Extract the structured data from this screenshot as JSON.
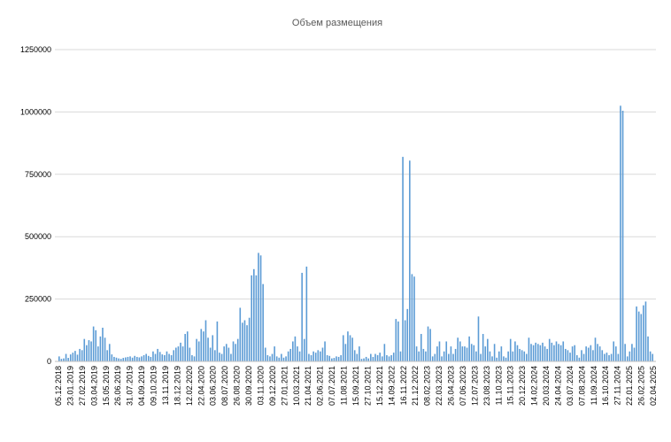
{
  "chart_data": {
    "type": "bar",
    "title": "Объем размещения",
    "xlabel": "",
    "ylabel": "",
    "ylim": [
      0,
      1250000
    ],
    "yticks": [
      "0",
      "250000",
      "500000",
      "750000",
      "1000000",
      "1250000"
    ],
    "grid": "horizontal",
    "legend": "none",
    "bar_color": "#5b9bd5",
    "xtick_labels": [
      "05.12.2018",
      "23.01.2019",
      "27.02.2019",
      "03.04.2019",
      "15.05.2019",
      "26.06.2019",
      "31.07.2019",
      "04.09.2019",
      "09.10.2019",
      "13.11.2019",
      "18.12.2019",
      "12.02.2020",
      "22.04.2020",
      "03.06.2020",
      "08.07.2020",
      "26.08.2020",
      "30.09.2020",
      "03.11.2020",
      "09.12.2020",
      "27.01.2021",
      "10.03.2021",
      "21.04.2021",
      "02.06.2021",
      "07.07.2021",
      "11.08.2021",
      "15.09.2021",
      "27.10.2021",
      "15.12.2021",
      "14.09.2022",
      "16.11.2022",
      "21.12.2022",
      "08.02.2023",
      "22.03.2023",
      "26.04.2023",
      "07.06.2023",
      "12.07.2023",
      "23.08.2023",
      "11.10.2023",
      "15.11.2023",
      "20.12.2023",
      "14.02.2024",
      "20.03.2024",
      "24.04.2024",
      "03.07.2024",
      "07.08.2024",
      "11.09.2024",
      "16.10.2024",
      "27.11.2024",
      "22.01.2025",
      "26.02.2025",
      "02.04.2025"
    ],
    "values": [
      20000,
      10000,
      12000,
      30000,
      14000,
      28000,
      35000,
      42000,
      27000,
      50000,
      45000,
      90000,
      65000,
      85000,
      80000,
      140000,
      125000,
      60000,
      100000,
      135000,
      95000,
      45000,
      70000,
      28000,
      18000,
      15000,
      12000,
      10000,
      14000,
      16000,
      18000,
      20000,
      15000,
      22000,
      18000,
      16000,
      20000,
      25000,
      30000,
      22000,
      18000,
      40000,
      30000,
      50000,
      38000,
      28000,
      25000,
      40000,
      30000,
      25000,
      45000,
      55000,
      60000,
      75000,
      60000,
      110000,
      120000,
      55000,
      25000,
      20000,
      90000,
      80000,
      130000,
      120000,
      165000,
      95000,
      55000,
      105000,
      45000,
      160000,
      35000,
      30000,
      60000,
      70000,
      55000,
      30000,
      80000,
      70000,
      90000,
      215000,
      155000,
      165000,
      145000,
      175000,
      345000,
      370000,
      345000,
      435000,
      425000,
      310000,
      55000,
      25000,
      20000,
      30000,
      60000,
      20000,
      15000,
      30000,
      15000,
      20000,
      40000,
      50000,
      80000,
      100000,
      60000,
      40000,
      355000,
      90000,
      380000,
      30000,
      25000,
      40000,
      35000,
      45000,
      40000,
      55000,
      80000,
      25000,
      22000,
      12000,
      14000,
      20000,
      18000,
      25000,
      105000,
      70000,
      120000,
      105000,
      95000,
      45000,
      30000,
      60000,
      10000,
      12000,
      18000,
      12000,
      30000,
      18000,
      30000,
      25000,
      35000,
      20000,
      70000,
      25000,
      20000,
      25000,
      35000,
      170000,
      160000,
      40000,
      820000,
      165000,
      210000,
      805000,
      350000,
      340000,
      60000,
      40000,
      110000,
      50000,
      40000,
      140000,
      130000,
      20000,
      30000,
      60000,
      80000,
      20000,
      40000,
      80000,
      30000,
      60000,
      30000,
      50000,
      95000,
      80000,
      60000,
      60000,
      55000,
      100000,
      70000,
      65000,
      40000,
      180000,
      30000,
      110000,
      60000,
      90000,
      40000,
      20000,
      70000,
      15000,
      40000,
      60000,
      20000,
      15000,
      40000,
      90000,
      40000,
      80000,
      65000,
      50000,
      45000,
      40000,
      30000,
      95000,
      70000,
      65000,
      75000,
      70000,
      65000,
      75000,
      60000,
      50000,
      90000,
      75000,
      65000,
      80000,
      70000,
      65000,
      80000,
      50000,
      45000,
      35000,
      60000,
      65000,
      25000,
      15000,
      45000,
      30000,
      60000,
      55000,
      65000,
      45000,
      95000,
      70000,
      60000,
      45000,
      30000,
      35000,
      25000,
      30000,
      80000,
      60000,
      30000,
      1025000,
      1005000,
      70000,
      20000,
      40000,
      70000,
      55000,
      220000,
      200000,
      190000,
      225000,
      240000,
      100000,
      40000,
      30000
    ]
  }
}
